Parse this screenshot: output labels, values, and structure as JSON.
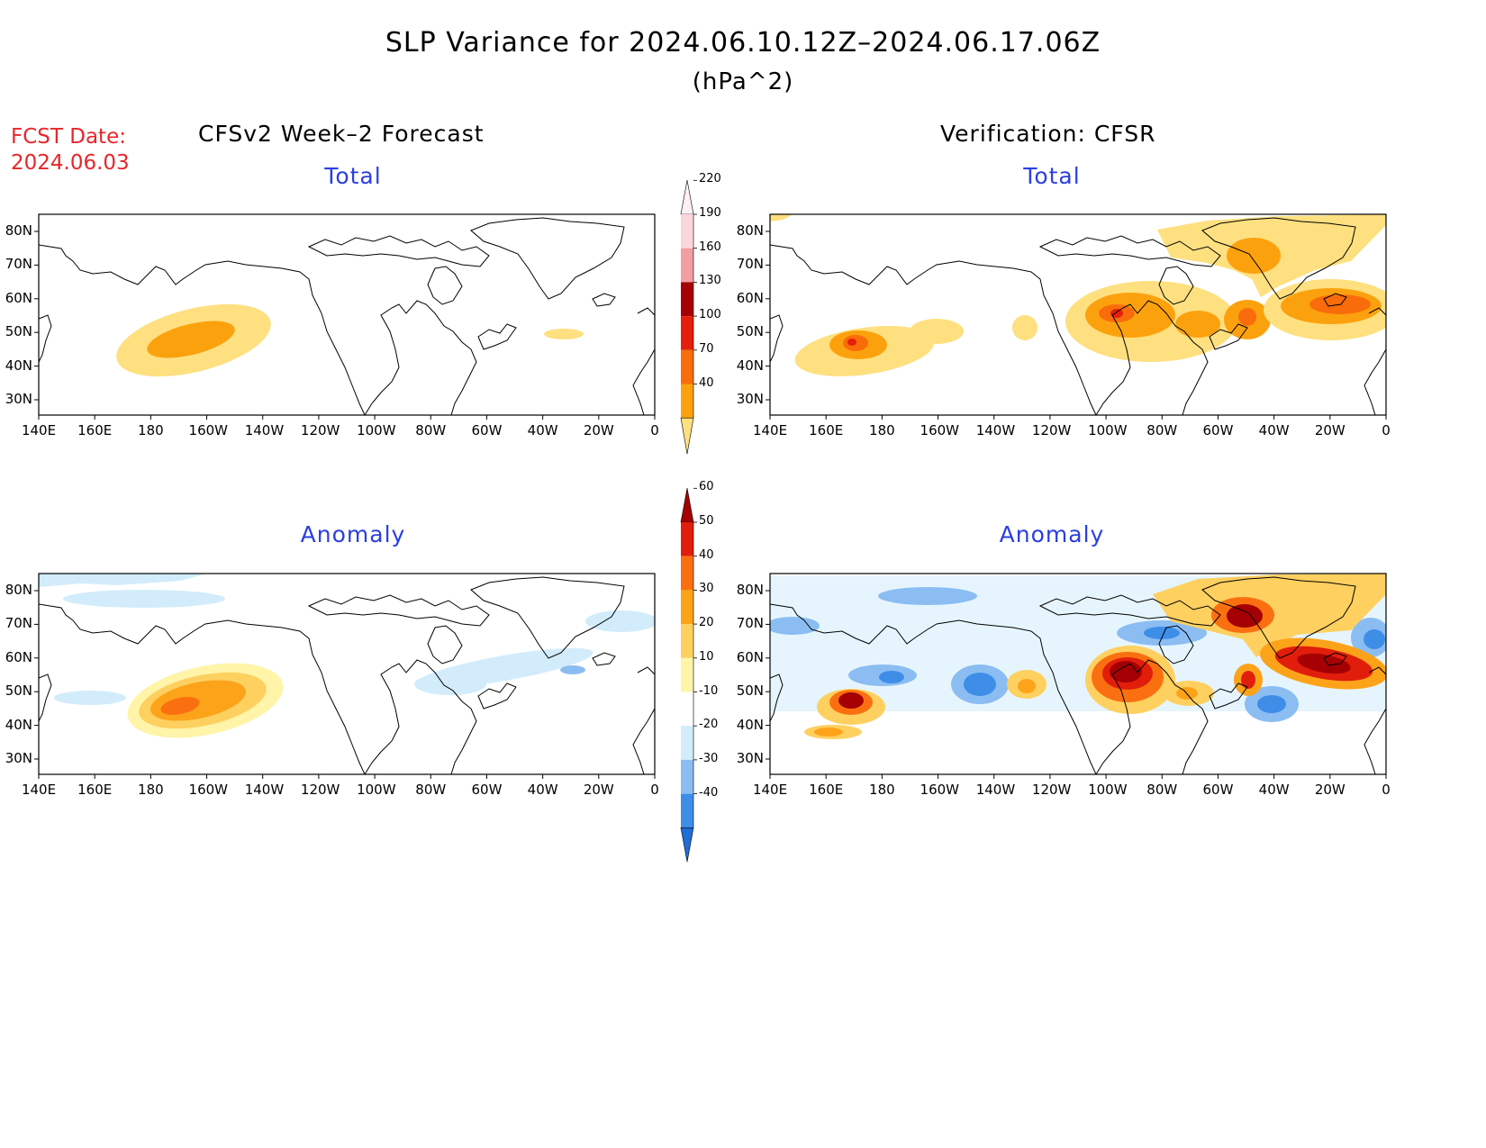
{
  "title": {
    "line1": "SLP Variance for 2024.06.10.12Z–2024.06.17.06Z",
    "line2": "(hPa^2)"
  },
  "fcst_date": {
    "label": "FCST Date:",
    "value": "2024.06.03"
  },
  "columns": {
    "forecast": "CFSv2 Week–2 Forecast",
    "verification": "Verification: CFSR"
  },
  "panel_titles": {
    "total": "Total",
    "anomaly": "Anomaly"
  },
  "lon_ticks": [
    "140E",
    "160E",
    "180",
    "160W",
    "140W",
    "120W",
    "100W",
    "80W",
    "60W",
    "40W",
    "20W",
    "0"
  ],
  "lat_ticks": [
    "80N",
    "70N",
    "60N",
    "50N",
    "40N",
    "30N"
  ],
  "colorbars": {
    "total": {
      "levels": [
        "40",
        "70",
        "100",
        "130",
        "160",
        "190",
        "220"
      ],
      "colors": [
        "#fee080",
        "#fca10e",
        "#f96c0b",
        "#e51f0d",
        "#a50004",
        "#f19ea1",
        "#fbd6da",
        "#fff0f2"
      ]
    },
    "anomaly": {
      "levels": [
        "-40",
        "-30",
        "-20",
        "-10",
        "10",
        "20",
        "30",
        "40",
        "50",
        "60"
      ],
      "colors": [
        "#1e6ed8",
        "#3e8ee8",
        "#8bbdf2",
        "#d2ecfb",
        "#ffffff",
        "#fff4a8",
        "#fed060",
        "#fca31a",
        "#fa7011",
        "#e11e0c",
        "#a50004"
      ]
    }
  },
  "map": {
    "lon_range": [
      "140E",
      "0"
    ],
    "lat_range": [
      "25N",
      "85N"
    ],
    "panels": [
      "forecast-total",
      "verification-total",
      "forecast-anomaly",
      "verification-anomaly"
    ]
  }
}
